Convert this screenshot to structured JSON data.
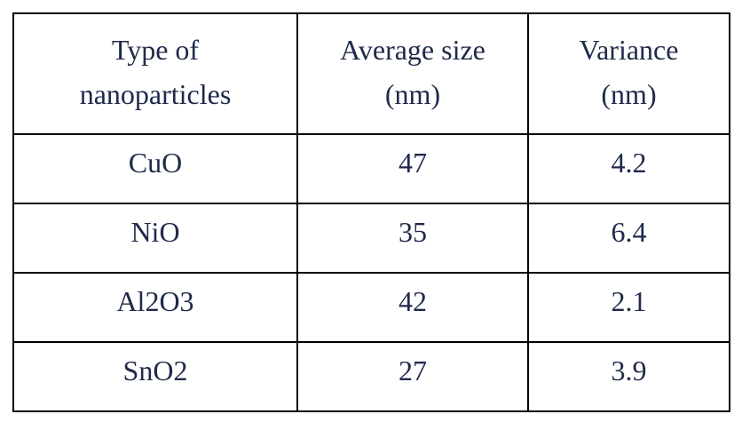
{
  "table": {
    "headers": [
      {
        "line1": "Type of",
        "line2": "nanoparticles"
      },
      {
        "line1": "Average size",
        "line2": "(nm)"
      },
      {
        "line1": "Variance",
        "line2": "(nm)"
      }
    ],
    "rows": [
      [
        "CuO",
        "47",
        "4.2"
      ],
      [
        "NiO",
        "35",
        "6.4"
      ],
      [
        "Al2O3",
        "42",
        "2.1"
      ],
      [
        "SnO2",
        "27",
        "3.9"
      ]
    ]
  }
}
